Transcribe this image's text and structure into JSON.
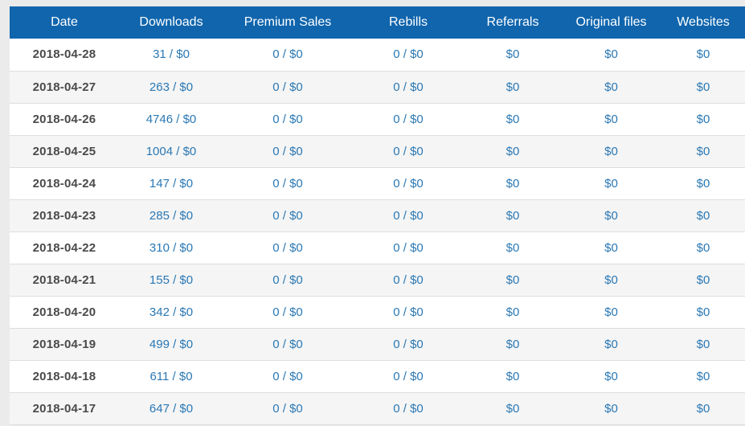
{
  "table": {
    "headers": [
      "Date",
      "Downloads",
      "Premium Sales",
      "Rebills",
      "Referrals",
      "Original files",
      "Websites"
    ],
    "rows": [
      {
        "date": "2018-04-28",
        "downloads": "31 / $0",
        "premium_sales": "0 / $0",
        "rebills": "0 / $0",
        "referrals": "$0",
        "original_files": "$0",
        "websites": "$0"
      },
      {
        "date": "2018-04-27",
        "downloads": "263 / $0",
        "premium_sales": "0 / $0",
        "rebills": "0 / $0",
        "referrals": "$0",
        "original_files": "$0",
        "websites": "$0"
      },
      {
        "date": "2018-04-26",
        "downloads": "4746 / $0",
        "premium_sales": "0 / $0",
        "rebills": "0 / $0",
        "referrals": "$0",
        "original_files": "$0",
        "websites": "$0"
      },
      {
        "date": "2018-04-25",
        "downloads": "1004 / $0",
        "premium_sales": "0 / $0",
        "rebills": "0 / $0",
        "referrals": "$0",
        "original_files": "$0",
        "websites": "$0"
      },
      {
        "date": "2018-04-24",
        "downloads": "147 / $0",
        "premium_sales": "0 / $0",
        "rebills": "0 / $0",
        "referrals": "$0",
        "original_files": "$0",
        "websites": "$0"
      },
      {
        "date": "2018-04-23",
        "downloads": "285 / $0",
        "premium_sales": "0 / $0",
        "rebills": "0 / $0",
        "referrals": "$0",
        "original_files": "$0",
        "websites": "$0"
      },
      {
        "date": "2018-04-22",
        "downloads": "310 / $0",
        "premium_sales": "0 / $0",
        "rebills": "0 / $0",
        "referrals": "$0",
        "original_files": "$0",
        "websites": "$0"
      },
      {
        "date": "2018-04-21",
        "downloads": "155 / $0",
        "premium_sales": "0 / $0",
        "rebills": "0 / $0",
        "referrals": "$0",
        "original_files": "$0",
        "websites": "$0"
      },
      {
        "date": "2018-04-20",
        "downloads": "342 / $0",
        "premium_sales": "0 / $0",
        "rebills": "0 / $0",
        "referrals": "$0",
        "original_files": "$0",
        "websites": "$0"
      },
      {
        "date": "2018-04-19",
        "downloads": "499 / $0",
        "premium_sales": "0 / $0",
        "rebills": "0 / $0",
        "referrals": "$0",
        "original_files": "$0",
        "websites": "$0"
      },
      {
        "date": "2018-04-18",
        "downloads": "611 / $0",
        "premium_sales": "0 / $0",
        "rebills": "0 / $0",
        "referrals": "$0",
        "original_files": "$0",
        "websites": "$0"
      },
      {
        "date": "2018-04-17",
        "downloads": "647 / $0",
        "premium_sales": "0 / $0",
        "rebills": "0 / $0",
        "referrals": "$0",
        "original_files": "$0",
        "websites": "$0"
      }
    ]
  },
  "colors": {
    "header_bg": "#1065ad",
    "header_text": "#ffffff",
    "value_text": "#2a78b4",
    "date_text": "#4a4a4a",
    "page_bg": "#ebebeb"
  }
}
